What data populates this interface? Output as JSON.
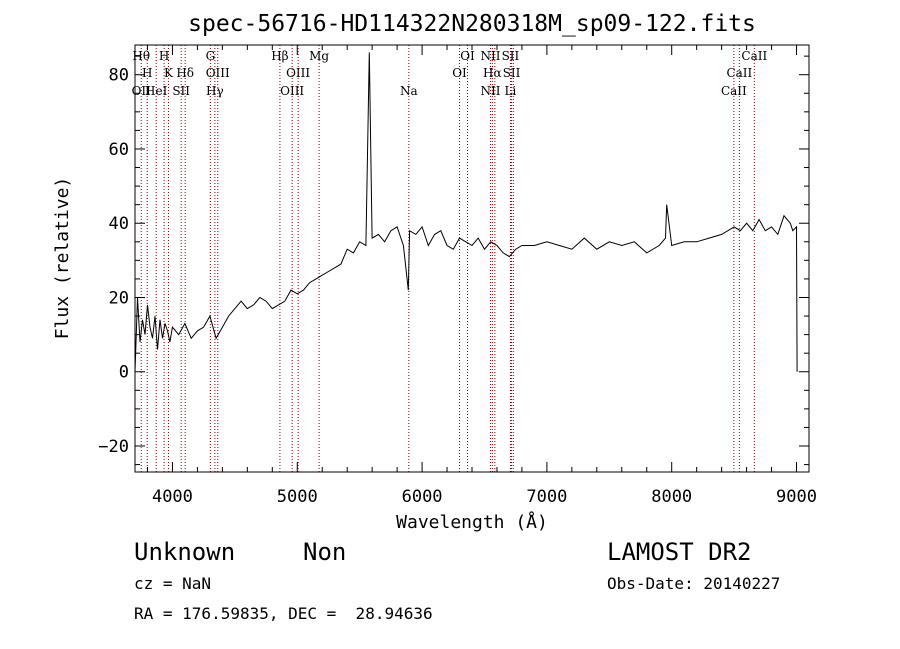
{
  "chart_data": {
    "type": "line",
    "title": "spec-56716-HD114322N280318M_sp09-122.fits",
    "xlabel": "Wavelength (Å)",
    "ylabel": "Flux (relative)",
    "xlim": [
      3700,
      9100
    ],
    "ylim": [
      -27,
      88
    ],
    "xticks": [
      4000,
      5000,
      6000,
      7000,
      8000,
      9000
    ],
    "yticks": [
      -20,
      0,
      20,
      40,
      60,
      80
    ],
    "grid": false,
    "line_color": "#000000",
    "marker_color": "#8b0000",
    "series": [
      {
        "x": [
          3700,
          3720,
          3740,
          3760,
          3780,
          3800,
          3820,
          3840,
          3860,
          3880,
          3900,
          3920,
          3940,
          3960,
          3980,
          4000,
          4050,
          4100,
          4150,
          4200,
          4250,
          4300,
          4350,
          4400,
          4450,
          4500,
          4550,
          4600,
          4650,
          4700,
          4750,
          4800,
          4850,
          4900,
          4950,
          5000,
          5050,
          5100,
          5150,
          5200,
          5250,
          5300,
          5350,
          5400,
          5450,
          5500,
          5550,
          5577,
          5600,
          5650,
          5700,
          5750,
          5800,
          5850,
          5890,
          5900,
          5950,
          6000,
          6050,
          6100,
          6150,
          6200,
          6250,
          6300,
          6350,
          6400,
          6450,
          6500,
          6550,
          6600,
          6650,
          6700,
          6750,
          6800,
          6900,
          7000,
          7100,
          7200,
          7300,
          7400,
          7500,
          7600,
          7700,
          7800,
          7900,
          7950,
          7960,
          8000,
          8100,
          8200,
          8300,
          8400,
          8500,
          8550,
          8600,
          8650,
          8700,
          8750,
          8800,
          8850,
          8900,
          8950,
          8970,
          9000,
          9005
        ],
        "y": [
          0,
          20,
          8,
          14,
          10,
          18,
          12,
          9,
          15,
          6,
          14,
          9,
          13,
          11,
          8,
          12,
          10,
          13,
          9,
          11,
          12,
          15,
          9,
          12,
          15,
          17,
          19,
          17,
          18,
          20,
          19,
          17,
          18,
          19,
          22,
          21,
          22,
          24,
          25,
          26,
          27,
          28,
          29,
          33,
          32,
          35,
          34,
          86,
          36,
          37,
          35,
          38,
          39,
          34,
          22,
          38,
          37,
          39,
          34,
          37,
          38,
          34,
          33,
          36,
          35,
          34,
          36,
          33,
          35,
          34,
          32,
          31,
          33,
          34,
          34,
          35,
          34,
          33,
          36,
          33,
          35,
          34,
          35,
          32,
          34,
          36,
          45,
          34,
          35,
          35,
          36,
          37,
          39,
          38,
          40,
          38,
          41,
          38,
          39,
          37,
          42,
          40,
          38,
          39,
          0
        ]
      }
    ],
    "lines": [
      {
        "x": 3750,
        "labels": [
          {
            "t": "Hθ",
            "r": 0
          },
          {
            "t": "OII",
            "r": 2
          }
        ]
      },
      {
        "x": 3798,
        "labels": [
          {
            "t": "H",
            "r": 1
          }
        ]
      },
      {
        "x": 3870,
        "labels": [
          {
            "t": "HeI",
            "r": 2
          }
        ]
      },
      {
        "x": 3933,
        "labels": [
          {
            "t": "H",
            "r": 0
          }
        ]
      },
      {
        "x": 3968,
        "labels": [
          {
            "t": "K",
            "r": 1
          }
        ]
      },
      {
        "x": 4070,
        "labels": [
          {
            "t": "SII",
            "r": 2
          }
        ]
      },
      {
        "x": 4102,
        "labels": [
          {
            "t": "Hδ",
            "r": 1
          }
        ]
      },
      {
        "x": 4304,
        "labels": [
          {
            "t": "G",
            "r": 0
          }
        ]
      },
      {
        "x": 4340,
        "labels": [
          {
            "t": "Hγ",
            "r": 2
          }
        ]
      },
      {
        "x": 4363,
        "labels": [
          {
            "t": "OIII",
            "r": 1
          }
        ]
      },
      {
        "x": 4861,
        "labels": [
          {
            "t": "Hβ",
            "r": 0
          }
        ]
      },
      {
        "x": 4959,
        "labels": [
          {
            "t": "OIII",
            "r": 2
          }
        ]
      },
      {
        "x": 5007,
        "labels": [
          {
            "t": "OIII",
            "r": 1
          }
        ]
      },
      {
        "x": 5175,
        "labels": [
          {
            "t": "Mg",
            "r": 0
          }
        ]
      },
      {
        "x": 5894,
        "labels": [
          {
            "t": "Na",
            "r": 2
          }
        ]
      },
      {
        "x": 6300,
        "labels": [
          {
            "t": "OI",
            "r": 1
          }
        ]
      },
      {
        "x": 6364,
        "labels": [
          {
            "t": "OI",
            "r": 0
          }
        ]
      },
      {
        "x": 6548,
        "labels": [
          {
            "t": "NII",
            "r": 0
          },
          {
            "t": "NII",
            "r": 2
          }
        ]
      },
      {
        "x": 6563,
        "labels": [
          {
            "t": "Hα",
            "r": 1
          }
        ]
      },
      {
        "x": 6583,
        "labels": []
      },
      {
        "x": 6708,
        "labels": [
          {
            "t": "SII",
            "r": 0
          },
          {
            "t": "Li",
            "r": 2
          }
        ]
      },
      {
        "x": 6717,
        "labels": [
          {
            "t": "SII",
            "r": 1
          }
        ]
      },
      {
        "x": 6731,
        "labels": []
      },
      {
        "x": 8498,
        "labels": [
          {
            "t": "CaII",
            "r": 2
          }
        ]
      },
      {
        "x": 8542,
        "labels": [
          {
            "t": "CaII",
            "r": 1
          }
        ]
      },
      {
        "x": 8662,
        "labels": [
          {
            "t": "CaII",
            "r": 0
          }
        ]
      }
    ]
  },
  "info": {
    "object_class": "Unknown",
    "subclass": "Non",
    "survey": "LAMOST DR2",
    "cz": "cz = NaN",
    "obs_date": "Obs-Date: 20140227",
    "coords": "RA = 176.59835, DEC =  28.94636"
  }
}
